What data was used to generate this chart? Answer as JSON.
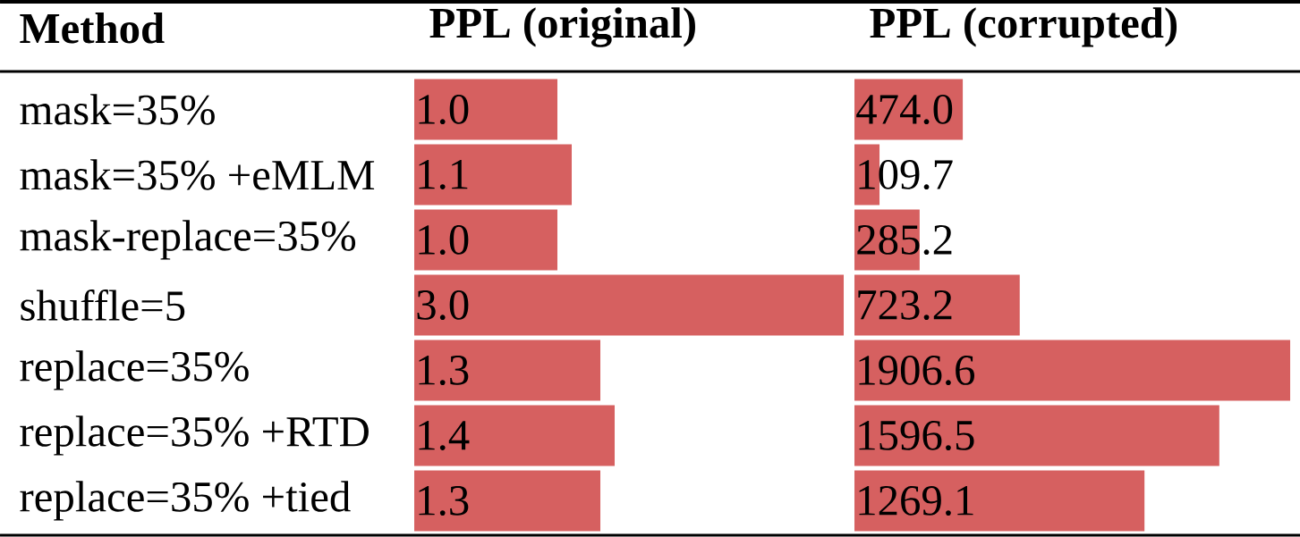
{
  "chart_data": [
    {
      "type": "bar",
      "orientation": "horizontal",
      "title": "PPL (original)",
      "ylabel": "Method",
      "color": "#d66060",
      "tick_labels": "y",
      "data_labels": true,
      "categories": [
        "mask=35%",
        "mask=35% +eMLM",
        "mask-replace=35%",
        "shuffle=5",
        "replace=35%",
        "replace=35% +RTD",
        "replace=35% +tied"
      ],
      "values": [
        1.0,
        1.1,
        1.0,
        3.0,
        1.3,
        1.4,
        1.3
      ],
      "value_labels": [
        "1.0",
        "1.1",
        "1.0",
        "3.0",
        "1.3",
        "1.4",
        "1.3"
      ]
    },
    {
      "type": "bar",
      "orientation": "horizontal",
      "title": "PPL (corrupted)",
      "color": "#d66060",
      "tick_labels": false,
      "data_labels": true,
      "values": [
        474.0,
        109.7,
        285.2,
        723.2,
        1906.6,
        1596.5,
        1269.1
      ],
      "value_labels": [
        "474.0",
        "109.7",
        "285.2",
        "723.2",
        "1906.6",
        "1596.5",
        "1269.1"
      ]
    }
  ]
}
